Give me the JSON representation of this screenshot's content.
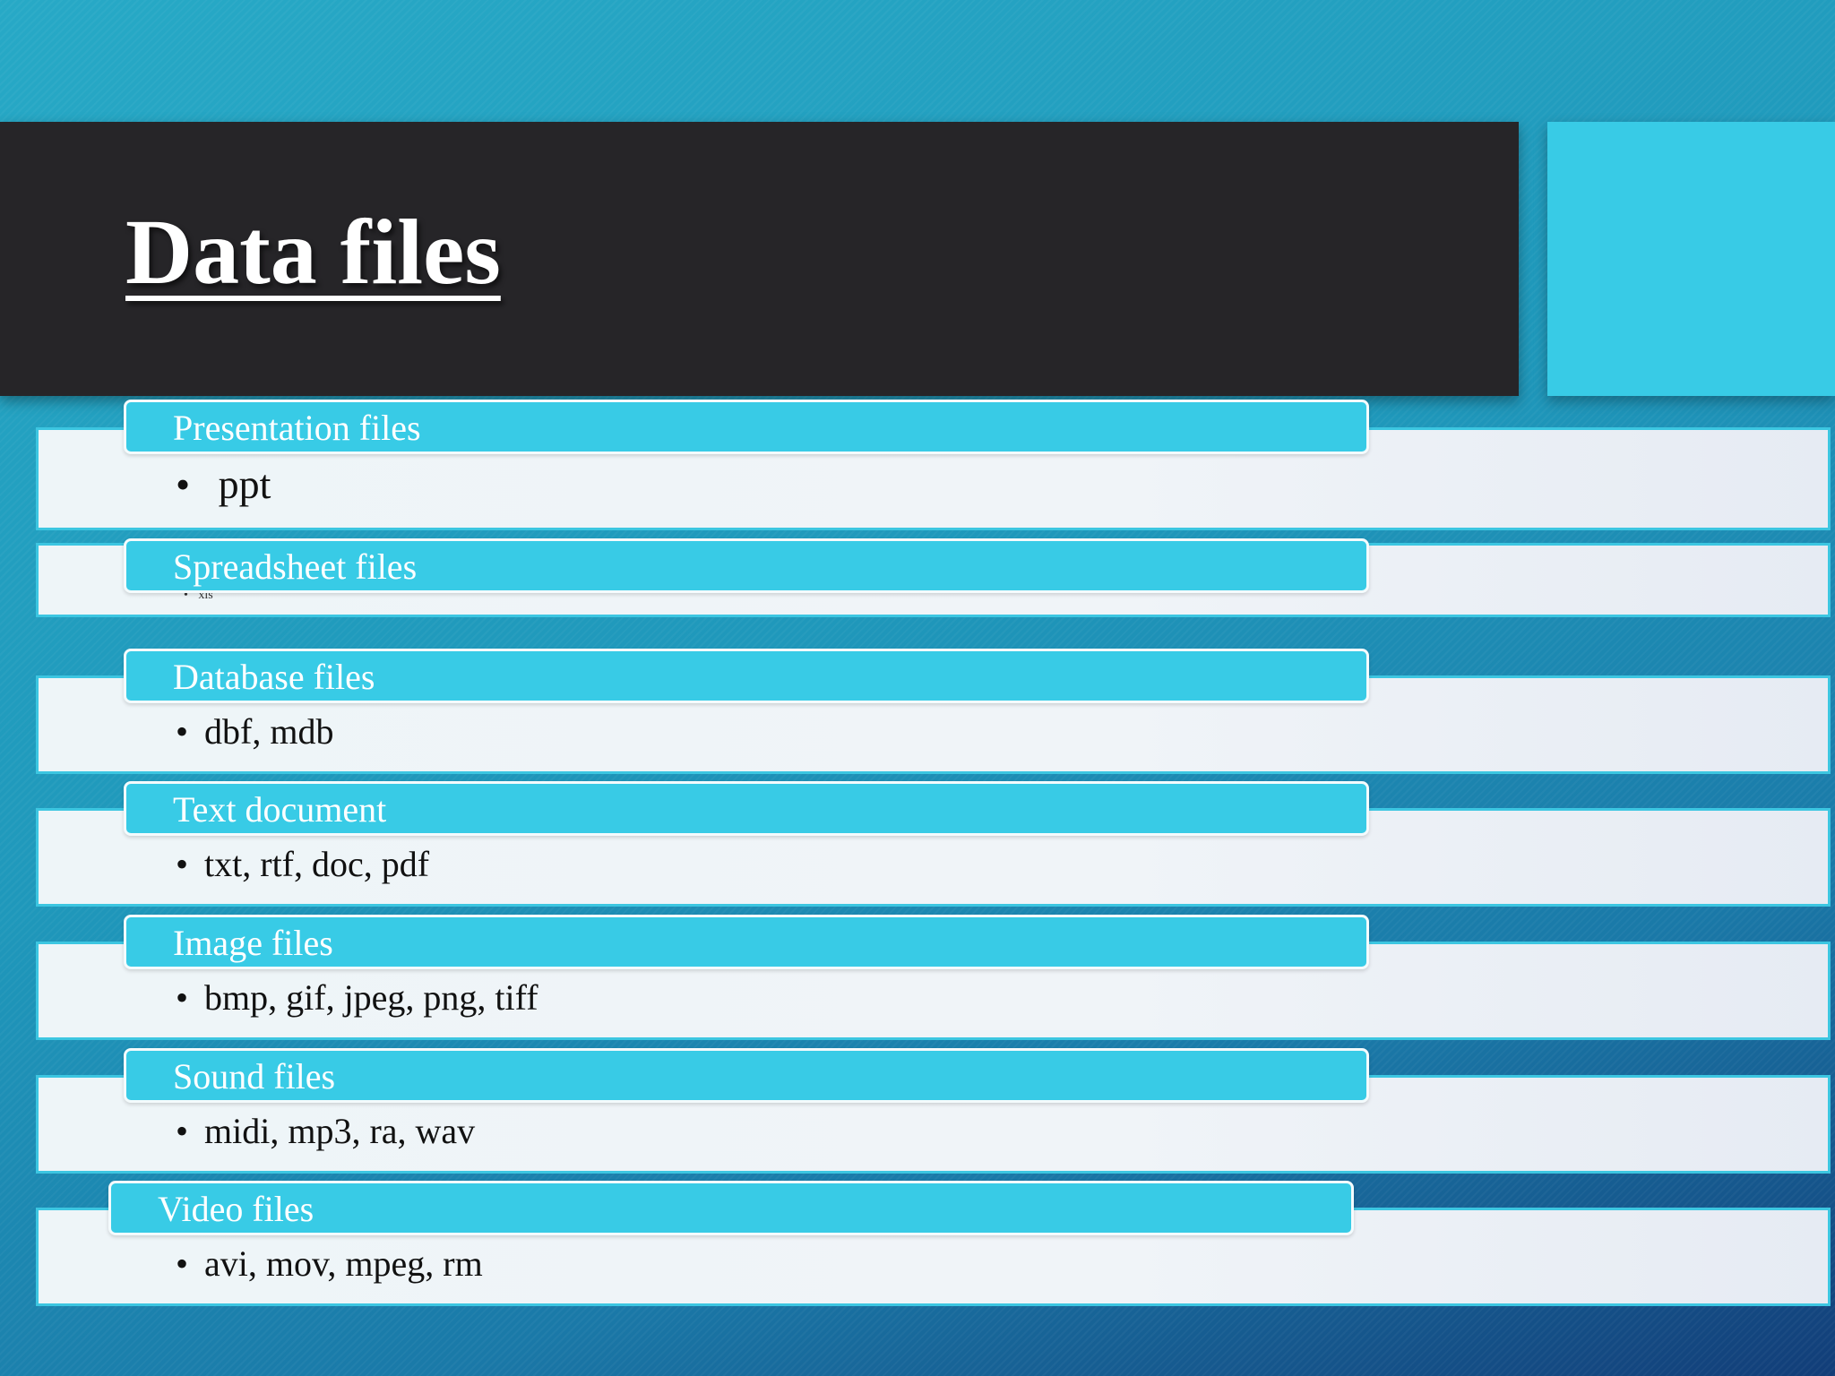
{
  "slide": {
    "title": "Data files"
  },
  "items": [
    {
      "header": "Presentation files",
      "bullet": "•",
      "text": "ppt"
    },
    {
      "header": "Spreadsheet files",
      "bullet": "•",
      "text": "xls"
    },
    {
      "header": "Database files",
      "bullet": "•",
      "text": "dbf, mdb"
    },
    {
      "header": "Text document",
      "bullet": "•",
      "text": "txt, rtf, doc, pdf"
    },
    {
      "header": "Image files",
      "bullet": "•",
      "text": "bmp, gif, jpeg, png, tiff"
    },
    {
      "header": "Sound files",
      "bullet": "•",
      "text": "midi, mp3, ra, wav"
    },
    {
      "header": "Video files",
      "bullet": "•",
      "text": "avi, mov, mpeg, rm"
    }
  ],
  "colors": {
    "title_bar": "#262528",
    "accent": "#38cbe6",
    "background": "#1f98bb"
  }
}
